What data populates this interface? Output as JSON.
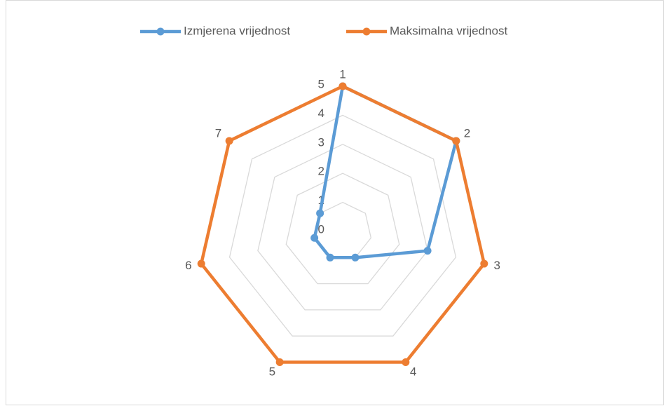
{
  "chart_data": {
    "type": "radar",
    "categories": [
      "1",
      "2",
      "3",
      "4",
      "5",
      "6",
      "7"
    ],
    "series": [
      {
        "name": "Izmjerena vrijednost",
        "color": "#5b9bd5",
        "values": [
          5,
          5,
          3,
          1,
          1,
          1,
          1
        ]
      },
      {
        "name": "Maksimalna vrijednost",
        "color": "#ed7d31",
        "values": [
          5,
          5,
          5,
          5,
          5,
          5,
          5
        ]
      }
    ],
    "ylim": [
      0,
      5
    ],
    "yticks": [
      0,
      1,
      2,
      3,
      4,
      5
    ],
    "grid": true,
    "legend": "top"
  }
}
